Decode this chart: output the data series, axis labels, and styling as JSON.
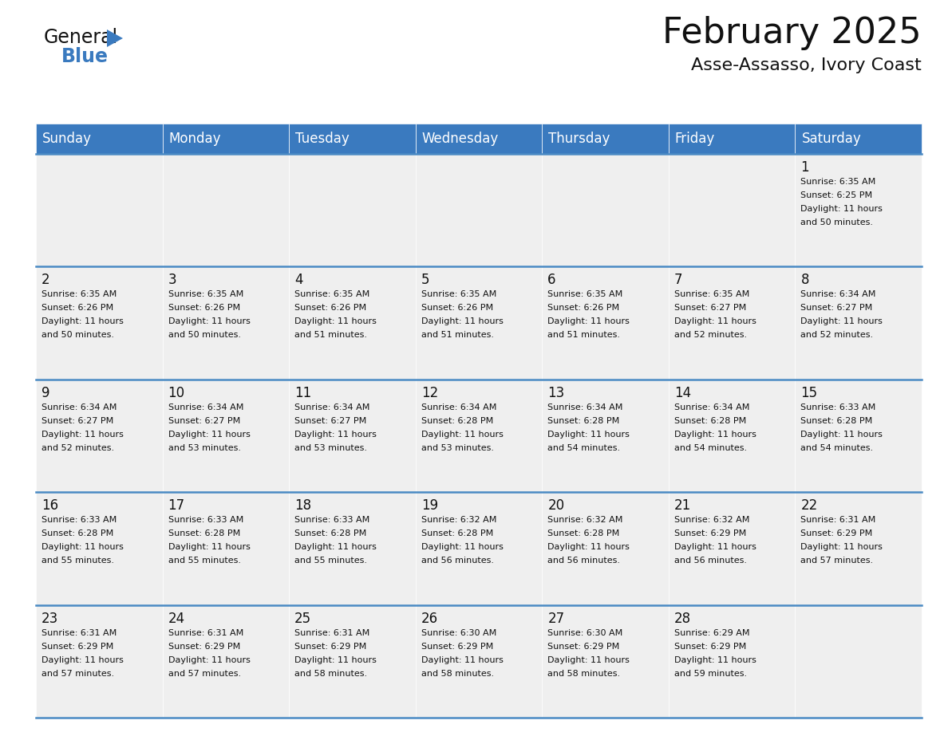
{
  "title": "February 2025",
  "subtitle": "Asse-Assasso, Ivory Coast",
  "header_color": "#3a7abf",
  "header_text_color": "#ffffff",
  "cell_bg": "#efefef",
  "cell_bg_white": "#ffffff",
  "border_color": "#4a8ac4",
  "day_names": [
    "Sunday",
    "Monday",
    "Tuesday",
    "Wednesday",
    "Thursday",
    "Friday",
    "Saturday"
  ],
  "days": [
    {
      "day": 1,
      "col": 6,
      "row": 0,
      "sunrise": "6:35 AM",
      "sunset": "6:25 PM",
      "daylight": "11 hours and 50 minutes."
    },
    {
      "day": 2,
      "col": 0,
      "row": 1,
      "sunrise": "6:35 AM",
      "sunset": "6:26 PM",
      "daylight": "11 hours and 50 minutes."
    },
    {
      "day": 3,
      "col": 1,
      "row": 1,
      "sunrise": "6:35 AM",
      "sunset": "6:26 PM",
      "daylight": "11 hours and 50 minutes."
    },
    {
      "day": 4,
      "col": 2,
      "row": 1,
      "sunrise": "6:35 AM",
      "sunset": "6:26 PM",
      "daylight": "11 hours and 51 minutes."
    },
    {
      "day": 5,
      "col": 3,
      "row": 1,
      "sunrise": "6:35 AM",
      "sunset": "6:26 PM",
      "daylight": "11 hours and 51 minutes."
    },
    {
      "day": 6,
      "col": 4,
      "row": 1,
      "sunrise": "6:35 AM",
      "sunset": "6:26 PM",
      "daylight": "11 hours and 51 minutes."
    },
    {
      "day": 7,
      "col": 5,
      "row": 1,
      "sunrise": "6:35 AM",
      "sunset": "6:27 PM",
      "daylight": "11 hours and 52 minutes."
    },
    {
      "day": 8,
      "col": 6,
      "row": 1,
      "sunrise": "6:34 AM",
      "sunset": "6:27 PM",
      "daylight": "11 hours and 52 minutes."
    },
    {
      "day": 9,
      "col": 0,
      "row": 2,
      "sunrise": "6:34 AM",
      "sunset": "6:27 PM",
      "daylight": "11 hours and 52 minutes."
    },
    {
      "day": 10,
      "col": 1,
      "row": 2,
      "sunrise": "6:34 AM",
      "sunset": "6:27 PM",
      "daylight": "11 hours and 53 minutes."
    },
    {
      "day": 11,
      "col": 2,
      "row": 2,
      "sunrise": "6:34 AM",
      "sunset": "6:27 PM",
      "daylight": "11 hours and 53 minutes."
    },
    {
      "day": 12,
      "col": 3,
      "row": 2,
      "sunrise": "6:34 AM",
      "sunset": "6:28 PM",
      "daylight": "11 hours and 53 minutes."
    },
    {
      "day": 13,
      "col": 4,
      "row": 2,
      "sunrise": "6:34 AM",
      "sunset": "6:28 PM",
      "daylight": "11 hours and 54 minutes."
    },
    {
      "day": 14,
      "col": 5,
      "row": 2,
      "sunrise": "6:34 AM",
      "sunset": "6:28 PM",
      "daylight": "11 hours and 54 minutes."
    },
    {
      "day": 15,
      "col": 6,
      "row": 2,
      "sunrise": "6:33 AM",
      "sunset": "6:28 PM",
      "daylight": "11 hours and 54 minutes."
    },
    {
      "day": 16,
      "col": 0,
      "row": 3,
      "sunrise": "6:33 AM",
      "sunset": "6:28 PM",
      "daylight": "11 hours and 55 minutes."
    },
    {
      "day": 17,
      "col": 1,
      "row": 3,
      "sunrise": "6:33 AM",
      "sunset": "6:28 PM",
      "daylight": "11 hours and 55 minutes."
    },
    {
      "day": 18,
      "col": 2,
      "row": 3,
      "sunrise": "6:33 AM",
      "sunset": "6:28 PM",
      "daylight": "11 hours and 55 minutes."
    },
    {
      "day": 19,
      "col": 3,
      "row": 3,
      "sunrise": "6:32 AM",
      "sunset": "6:28 PM",
      "daylight": "11 hours and 56 minutes."
    },
    {
      "day": 20,
      "col": 4,
      "row": 3,
      "sunrise": "6:32 AM",
      "sunset": "6:28 PM",
      "daylight": "11 hours and 56 minutes."
    },
    {
      "day": 21,
      "col": 5,
      "row": 3,
      "sunrise": "6:32 AM",
      "sunset": "6:29 PM",
      "daylight": "11 hours and 56 minutes."
    },
    {
      "day": 22,
      "col": 6,
      "row": 3,
      "sunrise": "6:31 AM",
      "sunset": "6:29 PM",
      "daylight": "11 hours and 57 minutes."
    },
    {
      "day": 23,
      "col": 0,
      "row": 4,
      "sunrise": "6:31 AM",
      "sunset": "6:29 PM",
      "daylight": "11 hours and 57 minutes."
    },
    {
      "day": 24,
      "col": 1,
      "row": 4,
      "sunrise": "6:31 AM",
      "sunset": "6:29 PM",
      "daylight": "11 hours and 57 minutes."
    },
    {
      "day": 25,
      "col": 2,
      "row": 4,
      "sunrise": "6:31 AM",
      "sunset": "6:29 PM",
      "daylight": "11 hours and 58 minutes."
    },
    {
      "day": 26,
      "col": 3,
      "row": 4,
      "sunrise": "6:30 AM",
      "sunset": "6:29 PM",
      "daylight": "11 hours and 58 minutes."
    },
    {
      "day": 27,
      "col": 4,
      "row": 4,
      "sunrise": "6:30 AM",
      "sunset": "6:29 PM",
      "daylight": "11 hours and 58 minutes."
    },
    {
      "day": 28,
      "col": 5,
      "row": 4,
      "sunrise": "6:29 AM",
      "sunset": "6:29 PM",
      "daylight": "11 hours and 59 minutes."
    }
  ],
  "num_rows": 5,
  "logo_color_general": "#111111",
  "logo_color_blue": "#3a7abf",
  "logo_triangle_color": "#3a7abf"
}
